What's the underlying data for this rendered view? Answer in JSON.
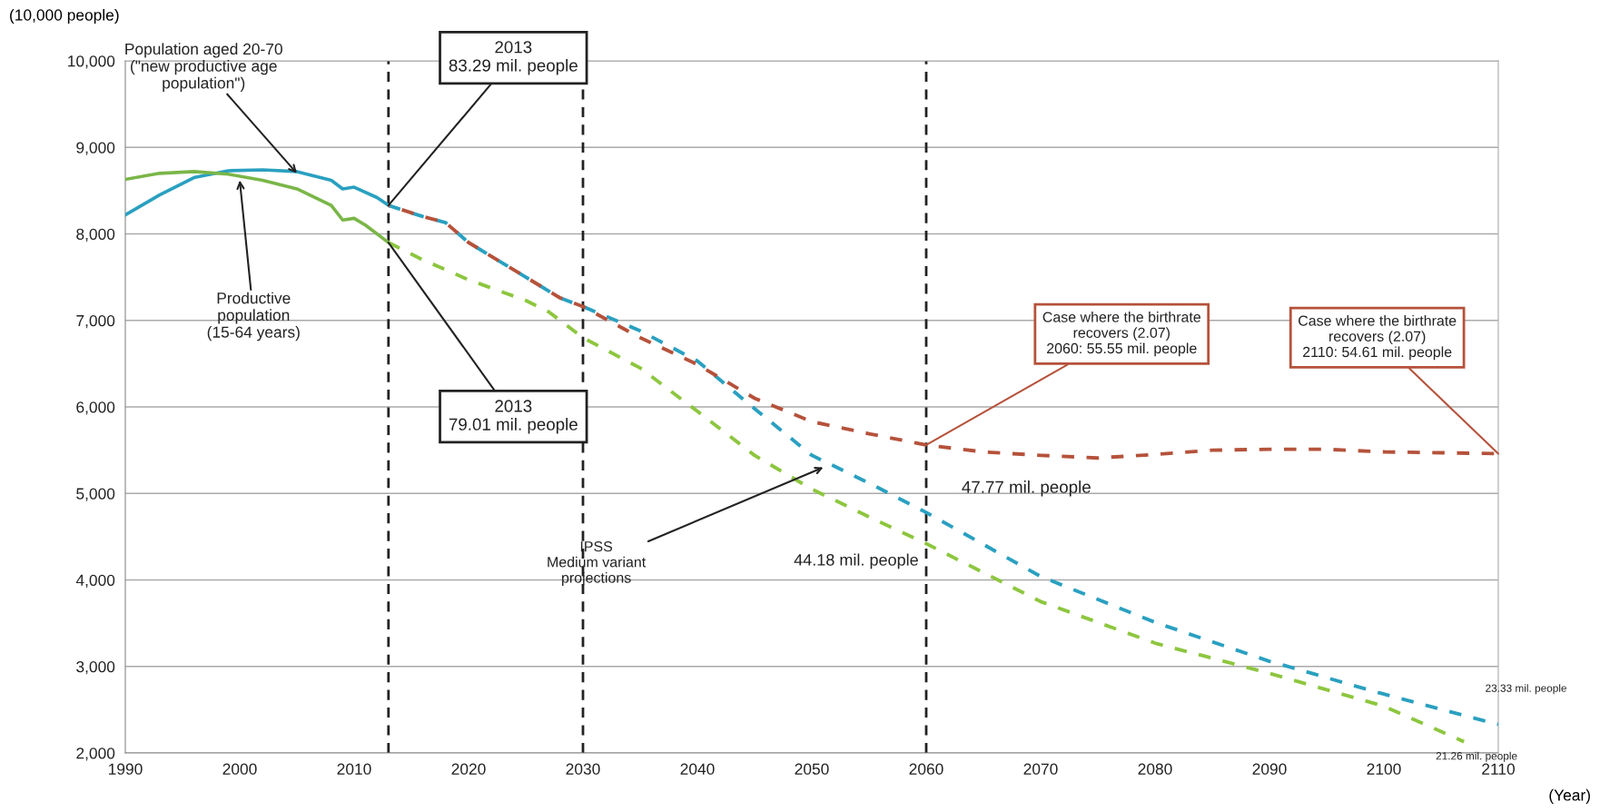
{
  "chart_data": {
    "type": "line",
    "ylabel": "(10,000 people)",
    "xlabel": "(Year)",
    "xlim": [
      1990,
      2110
    ],
    "xticks": [
      1990,
      2000,
      2010,
      2020,
      2030,
      2040,
      2050,
      2060,
      2070,
      2080,
      2090,
      2100,
      2110
    ],
    "ylim": [
      2000,
      10000
    ],
    "yticks": [
      {
        "value": 2000,
        "label": "2,000"
      },
      {
        "value": 3000,
        "label": "3,000"
      },
      {
        "value": 4000,
        "label": "4,000"
      },
      {
        "value": 5000,
        "label": "5,000"
      },
      {
        "value": 6000,
        "label": "6,000"
      },
      {
        "value": 7000,
        "label": "7,000"
      },
      {
        "value": 8000,
        "label": "8,000"
      },
      {
        "value": 9000,
        "label": "9,000"
      },
      {
        "value": 10000,
        "label": "10,000"
      }
    ],
    "grid": "y",
    "series": [
      {
        "color": "#2aa0c0",
        "line_style": "solid",
        "x": [
          1990,
          1993,
          1996,
          1999,
          2002,
          2005,
          2008,
          2009,
          2010,
          2012,
          2013
        ],
        "values": [
          8220,
          8450,
          8650,
          8730,
          8740,
          8720,
          8620,
          8520,
          8540,
          8420,
          8330
        ]
      },
      {
        "color": "#7ab648",
        "line_style": "solid",
        "x": [
          1990,
          1993,
          1996,
          1999,
          2002,
          2005,
          2008,
          2009,
          2010,
          2011,
          2013
        ],
        "values": [
          8630,
          8700,
          8720,
          8690,
          8620,
          8520,
          8330,
          8160,
          8180,
          8100,
          7900
        ]
      },
      {
        "color": "#2aa0c0",
        "line_style": "dashed",
        "x": [
          2013,
          2016,
          2018,
          2020,
          2023,
          2025,
          2028,
          2030,
          2035,
          2040,
          2045,
          2050,
          2055,
          2060,
          2070,
          2080,
          2090,
          2100,
          2110
        ],
        "values": [
          8330,
          8200,
          8130,
          7900,
          7660,
          7500,
          7260,
          7160,
          6880,
          6530,
          5980,
          5440,
          5120,
          4780,
          4040,
          3510,
          3060,
          2680,
          2330
        ]
      },
      {
        "color": "#b5523b",
        "line_style": "dashed",
        "x": [
          2013,
          2016,
          2018,
          2020,
          2023,
          2025,
          2028,
          2030,
          2035,
          2040,
          2045,
          2050,
          2055,
          2060,
          2065,
          2070,
          2075,
          2080,
          2085,
          2090,
          2095,
          2100,
          2105,
          2110
        ],
        "values": [
          8330,
          8200,
          8130,
          7900,
          7660,
          7500,
          7260,
          7160,
          6800,
          6490,
          6100,
          5830,
          5690,
          5560,
          5480,
          5440,
          5410,
          5450,
          5500,
          5510,
          5510,
          5480,
          5470,
          5460
        ]
      },
      {
        "color": "#8dc63f",
        "line_style": "dashed",
        "x": [
          2013,
          2016,
          2020,
          2025,
          2027,
          2030,
          2035,
          2040,
          2045,
          2050,
          2055,
          2060,
          2070,
          2080,
          2090,
          2100,
          2107
        ],
        "values": [
          7900,
          7700,
          7470,
          7230,
          7100,
          6800,
          6450,
          5950,
          5440,
          5050,
          4730,
          4420,
          3750,
          3270,
          2920,
          2540,
          2130
        ]
      }
    ],
    "ref_lines": [
      {
        "axis": "x",
        "value": 2013,
        "color": "#222222",
        "line_style": "dashed"
      },
      {
        "axis": "x",
        "value": 2030,
        "color": "#222222",
        "line_style": "dashed"
      },
      {
        "axis": "x",
        "value": 2060,
        "color": "#222222",
        "line_style": "dashed"
      }
    ],
    "annotations": [
      {
        "text": "Population aged 20-70\n(\"new productive age\npopulation\")",
        "x": 2005,
        "y": 8700
      },
      {
        "text": "Productive\npopulation\n(15-64 years)",
        "x": 2000,
        "y": 8620
      },
      {
        "text": "2013\n83.29 mil. people",
        "x": 2013,
        "y": 8330
      },
      {
        "text": "2013\n79.01 mil. people",
        "x": 2013,
        "y": 7900
      },
      {
        "text": "Case where the birthrate\nrecovers (2.07)\n2060: 55.55 mil. people",
        "x": 2060,
        "y": 5560
      },
      {
        "text": "Case where the birthrate\nrecovers (2.07)\n2110: 54.61 mil. people",
        "x": 2110,
        "y": 5460
      },
      {
        "text": "47.77 mil. people",
        "x": 2060,
        "y": 4780
      },
      {
        "text": "44.18 mil. people",
        "x": 2060,
        "y": 4420
      },
      {
        "text": "IPSS\nMedium variant\nprojections",
        "x": 2051,
        "y": 5300
      },
      {
        "text": "23.33 mil. people",
        "x": 2110,
        "y": 2330
      },
      {
        "text": "21.26 mil. people",
        "x": 2107,
        "y": 2130
      }
    ]
  }
}
